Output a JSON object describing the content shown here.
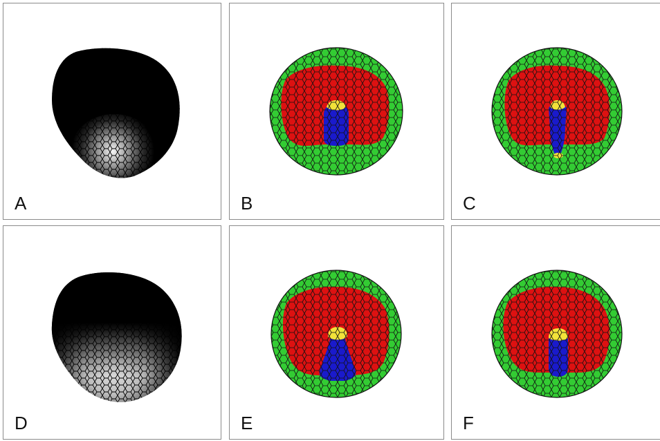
{
  "panels": [
    {
      "label": "A",
      "kind": "intensity",
      "glow": "focal"
    },
    {
      "label": "B",
      "kind": "tissue",
      "variant": "short-core"
    },
    {
      "label": "C",
      "kind": "tissue",
      "variant": "long-core"
    },
    {
      "label": "D",
      "kind": "intensity",
      "glow": "broad"
    },
    {
      "label": "E",
      "kind": "tissue",
      "variant": "flared-core"
    },
    {
      "label": "F",
      "kind": "tissue",
      "variant": "medium-core"
    }
  ],
  "colors": {
    "outer_layer": "#33cc33",
    "middle_layer": "#dd1111",
    "core": "#1a1acc",
    "tip": "#f2e23a",
    "cell_outline": "#111111",
    "intensity_dark": "#000000",
    "intensity_bright": "#f2f2f2"
  }
}
